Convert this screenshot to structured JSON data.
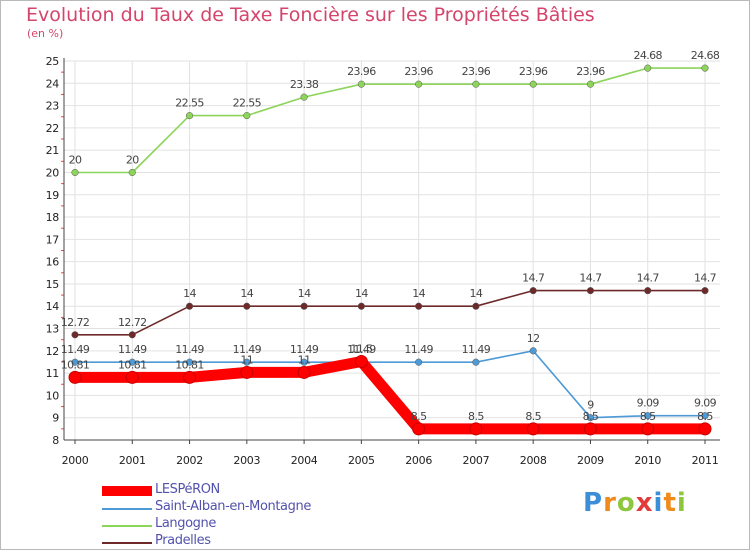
{
  "chart_data": {
    "type": "line",
    "title": "Evolution du Taux de Taxe Foncière sur les Propriétés Bâties",
    "ylabel": "(en %)",
    "xlabel": "",
    "ylim": [
      8,
      25
    ],
    "yticks": [
      8,
      9,
      10,
      11,
      12,
      13,
      14,
      15,
      16,
      17,
      18,
      19,
      20,
      21,
      22,
      23,
      24,
      25
    ],
    "x": [
      2000,
      2001,
      2002,
      2003,
      2004,
      2005,
      2006,
      2007,
      2008,
      2009,
      2010,
      2011
    ],
    "series": [
      {
        "name": "LESPéRON",
        "color": "#ff0000",
        "values": [
          10.81,
          10.81,
          10.81,
          11.03,
          11.03,
          11.52,
          8.5,
          8.5,
          8.5,
          8.5,
          8.5,
          8.5
        ],
        "labels": [
          "10.81",
          "10.81",
          "10.81",
          "11",
          "11",
          "11.5",
          "8.5",
          "8.5",
          "8.5",
          "8.5",
          "8.5",
          "8.5"
        ]
      },
      {
        "name": "Saint-Alban-en-Montagne",
        "color": "#4d9ad6",
        "values": [
          11.49,
          11.49,
          11.49,
          11.49,
          11.49,
          11.49,
          11.49,
          11.49,
          12,
          9,
          9.09,
          9.09
        ],
        "labels": [
          "11.49",
          "11.49",
          "11.49",
          "11.49",
          "11.49",
          "11.49",
          "11.49",
          "11.49",
          "12",
          "9",
          "9.09",
          "9.09"
        ]
      },
      {
        "name": "Langogne",
        "color": "#8cd45a",
        "values": [
          20,
          20,
          22.55,
          22.55,
          23.38,
          23.96,
          23.96,
          23.96,
          23.96,
          23.96,
          24.68,
          24.68
        ],
        "labels": [
          "20",
          "20",
          "22.55",
          "22.55",
          "23.38",
          "23.96",
          "23.96",
          "23.96",
          "23.96",
          "23.96",
          "24.68",
          "24.68"
        ]
      },
      {
        "name": "Pradelles",
        "color": "#6e2a2a",
        "values": [
          12.72,
          12.72,
          14,
          14,
          14,
          14,
          14,
          14,
          14.7,
          14.7,
          14.7,
          14.7
        ],
        "labels": [
          "12.72",
          "12.72",
          "14",
          "14",
          "14",
          "14",
          "14",
          "14",
          "14.7",
          "14.7",
          "14.7",
          "14.7"
        ]
      }
    ],
    "legend_position": "bottom-left"
  },
  "branding": {
    "logo_letters": [
      "P",
      "r",
      "o",
      "x",
      "i",
      "t",
      "i"
    ],
    "logo_colors": [
      "#3a8fd8",
      "#f08a1c",
      "#8fc640",
      "#e33b3b",
      "#3a8fd8",
      "#f08a1c",
      "#8fc640"
    ]
  }
}
